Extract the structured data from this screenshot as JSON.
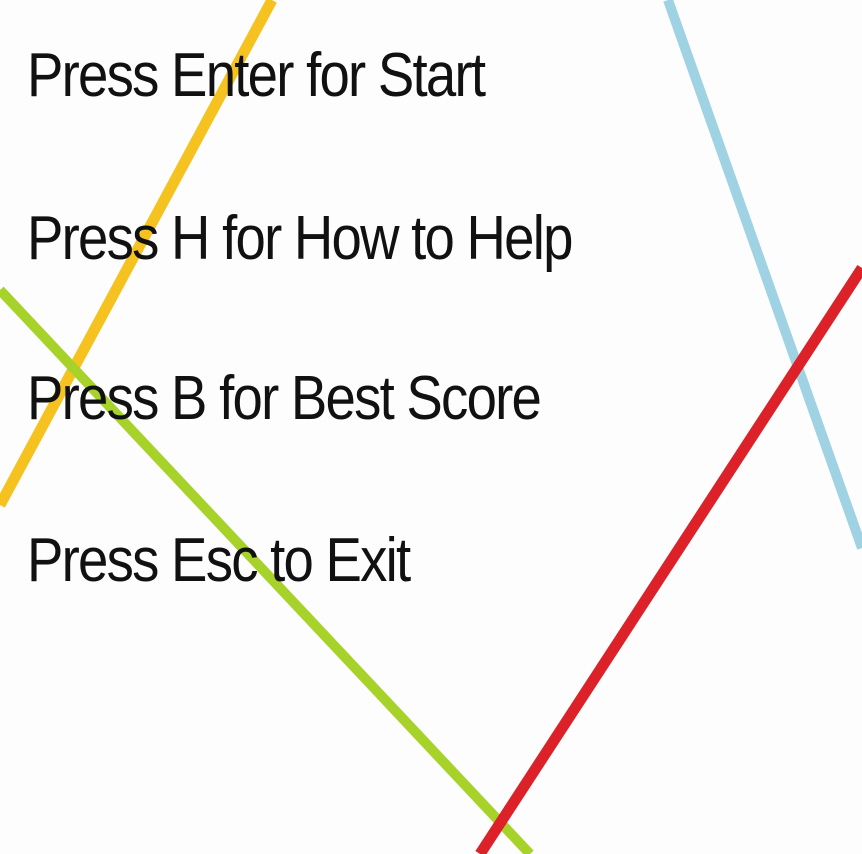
{
  "menu": {
    "items": [
      {
        "label": "Press Enter for Start",
        "key": "Enter"
      },
      {
        "label": "Press H for How to Help",
        "key": "H"
      },
      {
        "label": "Press B for Best Score",
        "key": "B"
      },
      {
        "label": "Press Esc to Exit",
        "key": "Esc"
      }
    ]
  },
  "background": {
    "color": "#fdfdfd",
    "decorative_lines": [
      {
        "name": "yellow-line",
        "color": "#f5c220"
      },
      {
        "name": "green-line",
        "color": "#a6d22a"
      },
      {
        "name": "blue-line",
        "color": "#9fd2e3"
      },
      {
        "name": "red-line",
        "color": "#dc2128"
      }
    ]
  }
}
